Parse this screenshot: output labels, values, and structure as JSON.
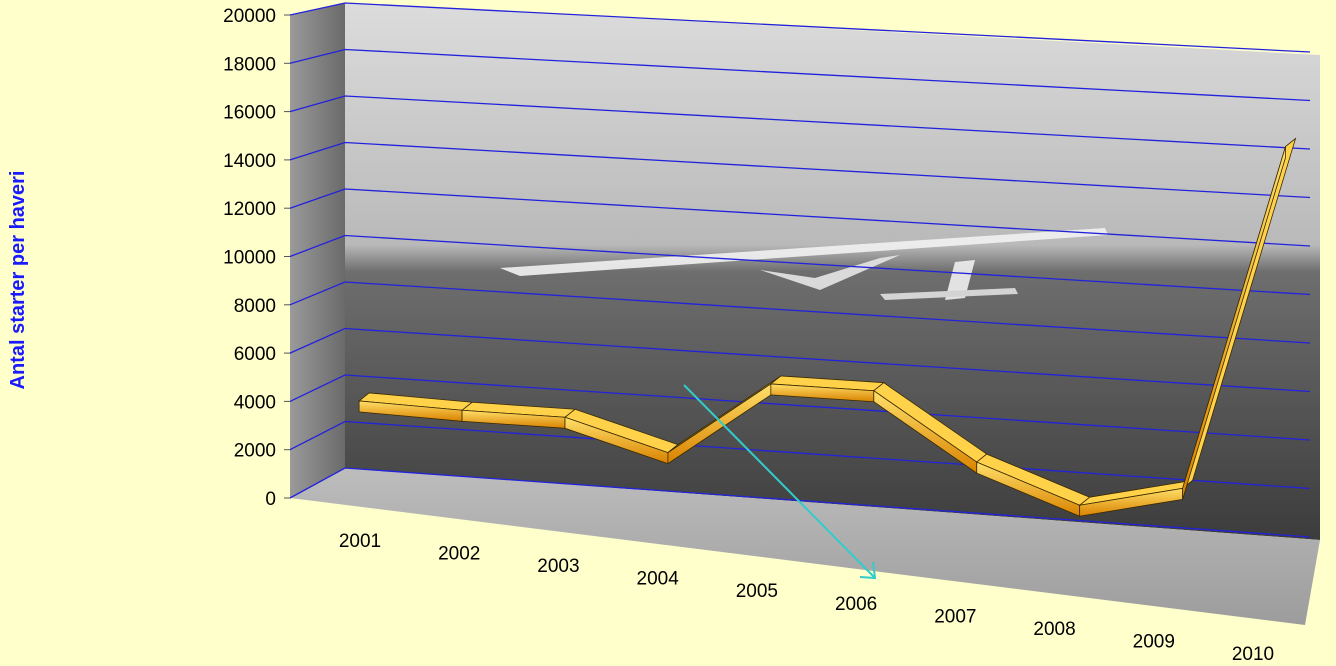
{
  "chart_data": {
    "type": "line",
    "style": "3d-ribbon",
    "title": "",
    "xlabel": "",
    "ylabel": "Antal starter per haveri",
    "categories": [
      "2001",
      "2002",
      "2003",
      "2004",
      "2005",
      "2006",
      "2007",
      "2008",
      "2009",
      "2010"
    ],
    "values": [
      3300,
      3200,
      3200,
      2000,
      5200,
      5200,
      2500,
      1000,
      2000,
      16400
    ],
    "ylim": [
      0,
      20000
    ],
    "yticks": [
      0,
      2000,
      4000,
      6000,
      8000,
      10000,
      12000,
      14000,
      16000,
      18000,
      20000
    ],
    "grid": true,
    "legend": "none",
    "colors": {
      "background": "#FFFFCC",
      "gridline": "#2222DD",
      "ribbon_top": "#FFD24A",
      "ribbon_front": "#E08A00",
      "ylabel": "#1A1AFF",
      "trend_arrow": "#33CCCC"
    }
  }
}
